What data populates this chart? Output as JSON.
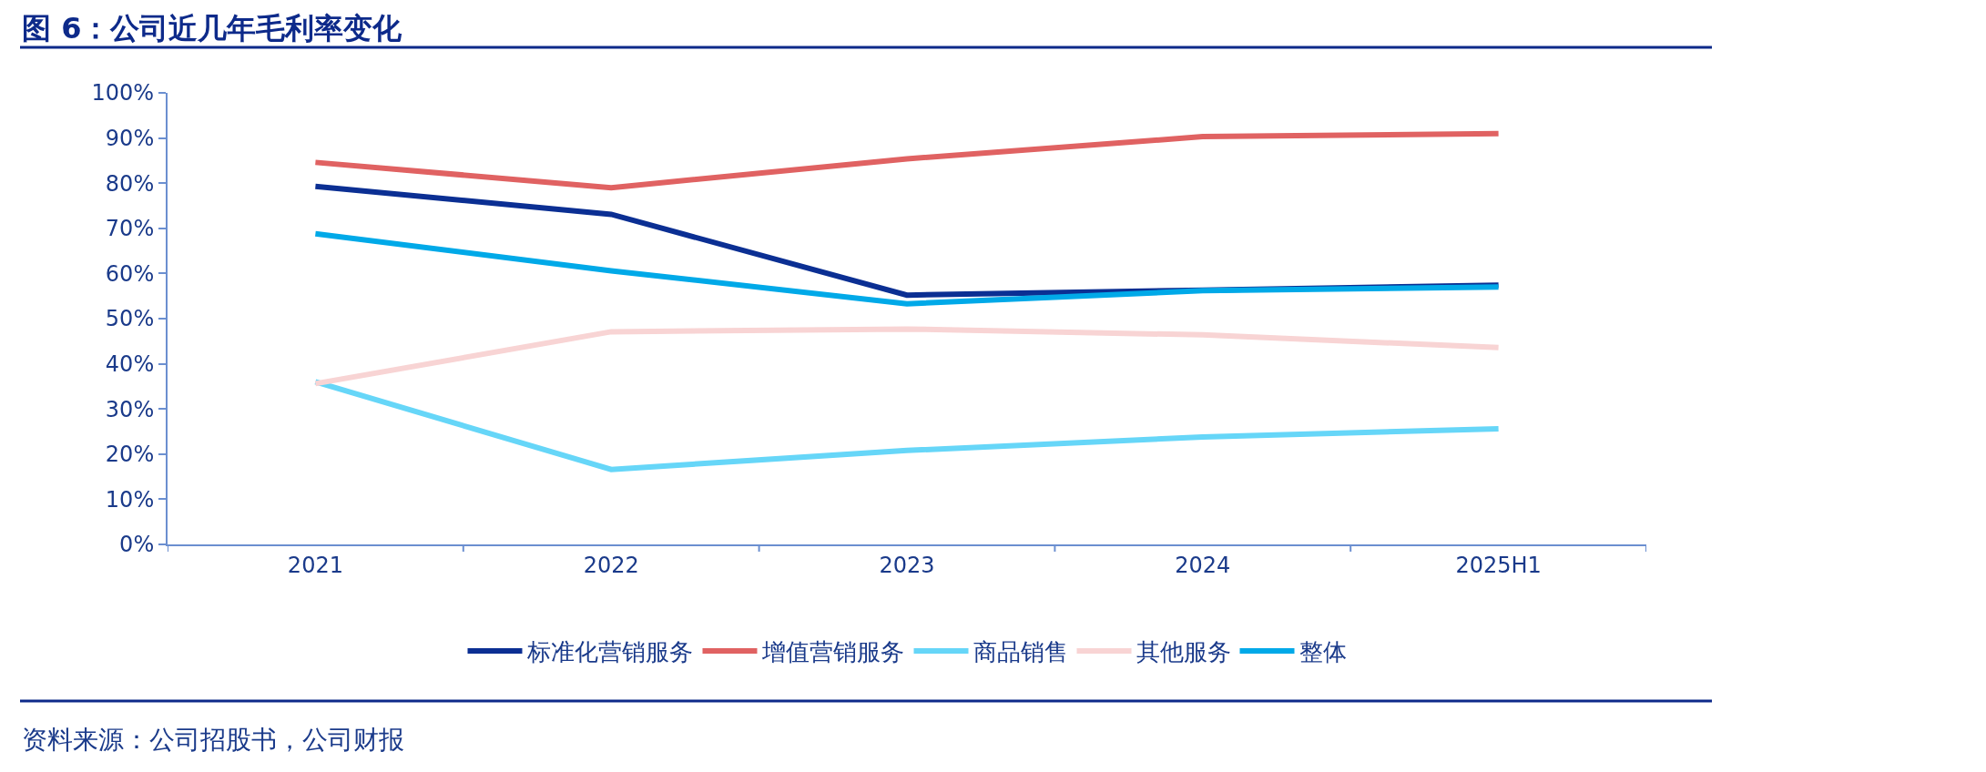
{
  "chart_data": {
    "type": "line",
    "title": "图 6：公司近几年毛利率变化",
    "categories": [
      "2021",
      "2022",
      "2023",
      "2024",
      "2025H1"
    ],
    "series": [
      {
        "name": "标准化营销服务",
        "color": "#0b2f93",
        "values": [
          79.3,
          73.1,
          55.2,
          56.3,
          57.4
        ]
      },
      {
        "name": "增值营销服务",
        "color": "#e06262",
        "values": [
          84.6,
          79.0,
          85.4,
          90.3,
          91.0
        ]
      },
      {
        "name": "商品销售",
        "color": "#66d6f8",
        "values": [
          36.0,
          16.6,
          20.8,
          23.8,
          25.6
        ]
      },
      {
        "name": "其他服务",
        "color": "#f8d4d4",
        "values": [
          35.6,
          47.1,
          47.7,
          46.4,
          43.6
        ]
      },
      {
        "name": "整体",
        "color": "#00a9e8",
        "values": [
          68.8,
          60.6,
          53.3,
          56.2,
          57.0
        ]
      }
    ],
    "ylim": [
      0,
      100
    ],
    "yticks": [
      {
        "value": 0,
        "label": "0%"
      },
      {
        "value": 10,
        "label": "10%"
      },
      {
        "value": 20,
        "label": "20%"
      },
      {
        "value": 30,
        "label": "30%"
      },
      {
        "value": 40,
        "label": "40%"
      },
      {
        "value": 50,
        "label": "50%"
      },
      {
        "value": 60,
        "label": "60%"
      },
      {
        "value": 70,
        "label": "70%"
      },
      {
        "value": 80,
        "label": "80%"
      },
      {
        "value": 90,
        "label": "90%"
      },
      {
        "value": 100,
        "label": "100%"
      }
    ],
    "legend": "bottom",
    "marker": "none",
    "line_style": "solid",
    "annotations": [
      "资料来源：公司招股书，公司财报"
    ]
  }
}
